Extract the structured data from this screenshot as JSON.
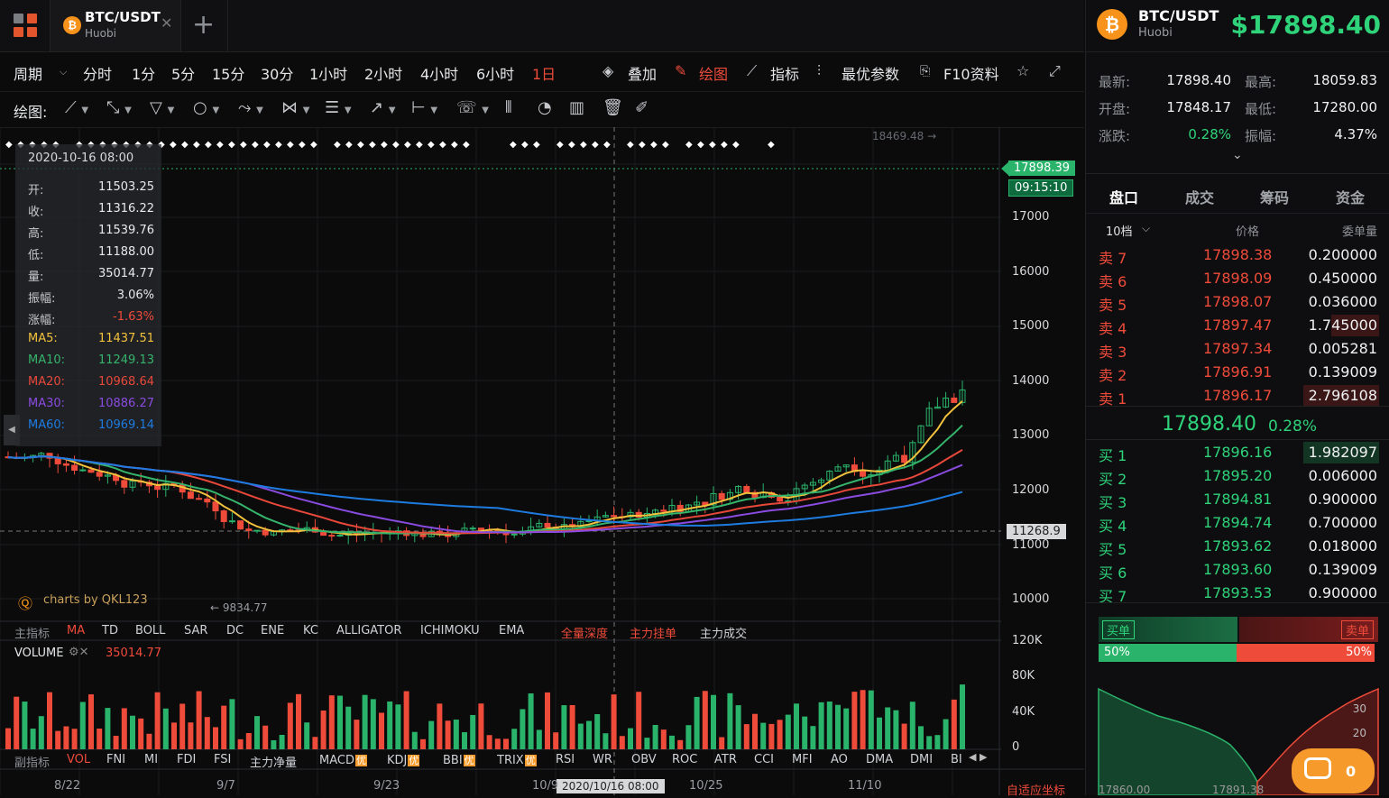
{
  "tab": {
    "symbol": "BTC/USDT",
    "exchange": "Huobi",
    "coin_glyph": "₿"
  },
  "toolbar1": {
    "period_label": "周期",
    "periods": [
      "分时",
      "1分",
      "5分",
      "15分",
      "30分",
      "1小时",
      "2小时",
      "4小时",
      "6小时",
      "1日"
    ],
    "active_period": "1日",
    "overlay": "叠加",
    "draw": "绘图",
    "indicator": "指标",
    "best_params": "最优参数",
    "f10": "F10资料"
  },
  "toolbar2": {
    "label": "绘图:"
  },
  "legend": {
    "date": "2020-10-16 08:00",
    "rows": [
      {
        "k": "开:",
        "v": "11503.25"
      },
      {
        "k": "收:",
        "v": "11316.22"
      },
      {
        "k": "高:",
        "v": "11539.76"
      },
      {
        "k": "低:",
        "v": "11188.00"
      },
      {
        "k": "量:",
        "v": "35014.77"
      },
      {
        "k": "振幅:",
        "v": "3.06%"
      },
      {
        "k": "涨幅:",
        "v": "-1.63%"
      },
      {
        "k": "MA5:",
        "v": "11437.51",
        "color": "#f2c23c"
      },
      {
        "k": "MA10:",
        "v": "11249.13",
        "color": "#35b46b"
      },
      {
        "k": "MA20:",
        "v": "10968.64",
        "color": "#e8483a"
      },
      {
        "k": "MA30:",
        "v": "10886.27",
        "color": "#8a4be0"
      },
      {
        "k": "MA60:",
        "v": "10969.14",
        "color": "#1e7ce0"
      }
    ]
  },
  "chart": {
    "high_label": "18469.48 →",
    "low_label": "← 9834.77",
    "last_price": "17898.39",
    "countdown": "09:15:10",
    "crosshair_price": "11268.9",
    "crosshair_date": "2020/10/16 08:00",
    "watermark": "charts by QKL123",
    "yaxis": [
      "17000",
      "16000",
      "15000",
      "14000",
      "13000",
      "12000",
      "11000",
      "10000"
    ],
    "vol_axis": [
      "120K",
      "80K",
      "40K",
      "0"
    ],
    "xaxis": [
      "8/22",
      "9/7",
      "9/23",
      "10/9",
      "10/25",
      "11/10"
    ],
    "autoscale": "自适应坐标"
  },
  "main_indicators": {
    "label": "主指标",
    "items": [
      "MA",
      "TD",
      "BOLL",
      "SAR",
      "DC",
      "ENE",
      "KC",
      "ALLIGATOR",
      "ICHIMOKU",
      "EMA"
    ],
    "active": "MA",
    "extras": [
      "全量深度",
      "主力挂单",
      "主力成交"
    ]
  },
  "volume": {
    "label": "VOLUME",
    "value": "35014.77"
  },
  "sub_indicators": {
    "label": "副指标",
    "items": [
      "VOL",
      "FNI",
      "MI",
      "FDI",
      "FSI",
      "主力净量",
      "MACD",
      "KDJ",
      "BBI",
      "TRIX",
      "RSI",
      "WR",
      "OBV",
      "ROC",
      "ATR",
      "CCI",
      "MFI",
      "AO",
      "DMA",
      "DMI",
      "BI"
    ],
    "active": "VOL",
    "badge": "优"
  },
  "ticker": {
    "symbol": "BTC/USDT",
    "exchange": "Huobi",
    "price": "$17898.40",
    "stats": [
      {
        "k": "最新:",
        "v": "17898.40",
        "k2": "最高:",
        "v2": "18059.83"
      },
      {
        "k": "开盘:",
        "v": "17848.17",
        "k2": "最低:",
        "v2": "17280.00"
      },
      {
        "k": "涨跌:",
        "v": "0.28%",
        "k2": "振幅:",
        "v2": "4.37%"
      }
    ]
  },
  "panel_tabs": [
    "盘口",
    "成交",
    "筹码",
    "资金"
  ],
  "orderbook": {
    "depth": "10档",
    "col_price": "价格",
    "col_qty": "委单量",
    "asks": [
      {
        "side": "卖 7",
        "price": "17898.38",
        "qty": "0.200000",
        "fill": 0.0
      },
      {
        "side": "卖 6",
        "price": "17898.09",
        "qty": "0.450000",
        "fill": 0.0
      },
      {
        "side": "卖 5",
        "price": "17898.07",
        "qty": "0.036000",
        "fill": 0.0
      },
      {
        "side": "卖 4",
        "price": "17897.47",
        "qty": "1.745000",
        "fill": 0.63
      },
      {
        "side": "卖 3",
        "price": "17897.34",
        "qty": "0.005281",
        "fill": 0.0
      },
      {
        "side": "卖 2",
        "price": "17896.91",
        "qty": "0.139009",
        "fill": 0.0
      },
      {
        "side": "卖 1",
        "price": "17896.17",
        "qty": "2.796108",
        "fill": 1.0
      }
    ],
    "mid_price": "17898.40",
    "mid_change": "0.28%",
    "bids": [
      {
        "side": "买 1",
        "price": "17896.16",
        "qty": "1.982097",
        "fill": 1.0
      },
      {
        "side": "买 2",
        "price": "17895.20",
        "qty": "0.006000",
        "fill": 0.0
      },
      {
        "side": "买 3",
        "price": "17894.81",
        "qty": "0.900000",
        "fill": 0.0
      },
      {
        "side": "买 4",
        "price": "17894.74",
        "qty": "0.700000",
        "fill": 0.0
      },
      {
        "side": "买 5",
        "price": "17893.62",
        "qty": "0.018000",
        "fill": 0.0
      },
      {
        "side": "买 6",
        "price": "17893.60",
        "qty": "0.139009",
        "fill": 0.0
      },
      {
        "side": "买 7",
        "price": "17893.53",
        "qty": "0.900000",
        "fill": 0.0
      }
    ]
  },
  "buysell": {
    "buy_label": "买单",
    "sell_label": "卖单",
    "buy_pct": "50%",
    "sell_pct": "50%",
    "buy_ratio": 0.5
  },
  "depth": {
    "axis": [
      "30",
      "20"
    ],
    "xlabels": [
      "17860.00",
      "17891.38"
    ]
  },
  "chat": {
    "count": "0"
  },
  "colors": {
    "up": "#2ed37a",
    "down": "#ef4b3a",
    "accent": "#ef4b3a"
  }
}
